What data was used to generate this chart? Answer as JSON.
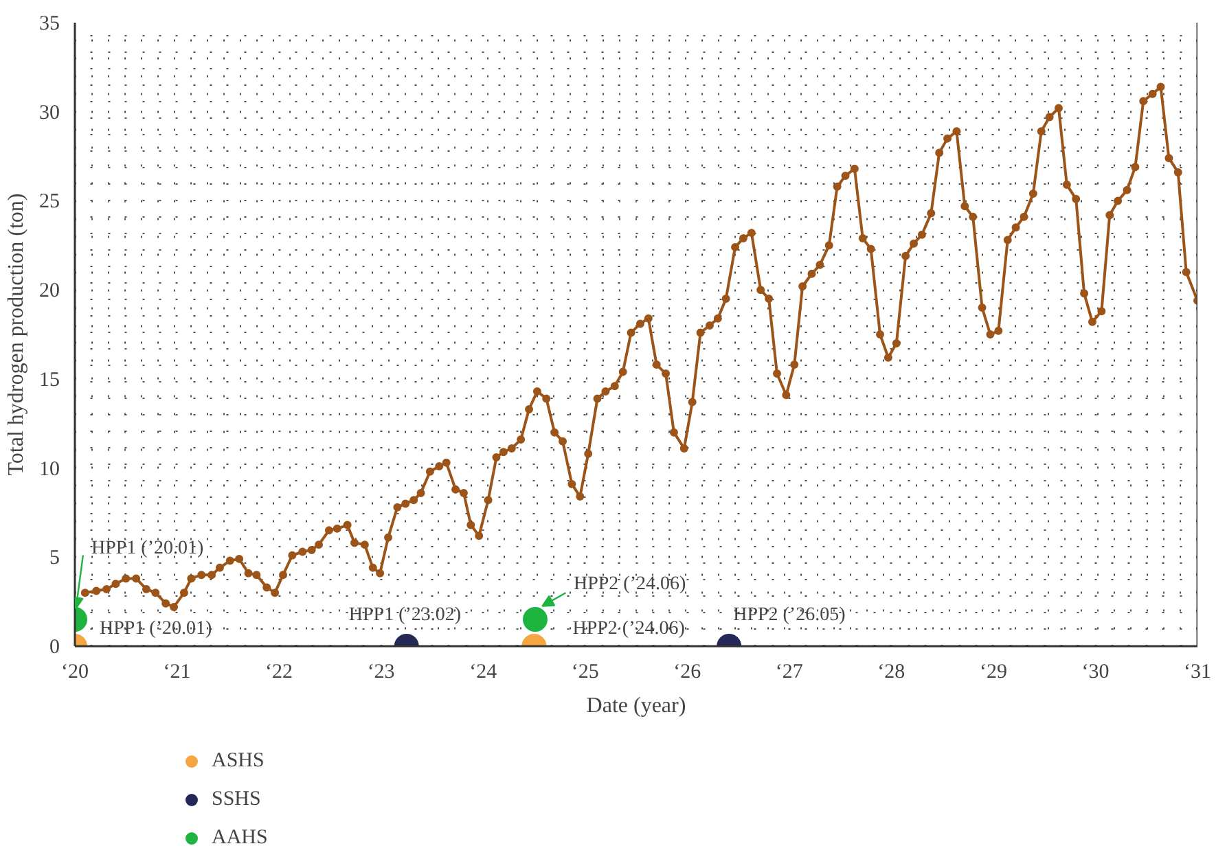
{
  "chart_data": {
    "type": "line",
    "xlabel": "Date (year)",
    "ylabel": "Total hydrogen production (ton)",
    "xlim": [
      20,
      31
    ],
    "ylim": [
      0,
      35
    ],
    "xticks": [
      {
        "value": 20,
        "label": "‘20"
      },
      {
        "value": 21,
        "label": "‘21"
      },
      {
        "value": 22,
        "label": "‘22"
      },
      {
        "value": 23,
        "label": "‘23"
      },
      {
        "value": 24,
        "label": "‘24"
      },
      {
        "value": 25,
        "label": "‘25"
      },
      {
        "value": 26,
        "label": "‘26"
      },
      {
        "value": 27,
        "label": "‘27"
      },
      {
        "value": 28,
        "label": "‘28"
      },
      {
        "value": 29,
        "label": "‘29"
      },
      {
        "value": 30,
        "label": "‘30"
      },
      {
        "value": 31,
        "label": "‘31"
      }
    ],
    "yticks": [
      0,
      5,
      10,
      15,
      20,
      25,
      30,
      35
    ],
    "grid": true,
    "legend": "bottom",
    "marker": "circle",
    "line_style": "solid",
    "series": [
      {
        "color": "#9c5418",
        "x": [
          20.1,
          20.21,
          20.31,
          20.4,
          20.5,
          20.6,
          20.7,
          20.79,
          20.89,
          20.97,
          21.07,
          21.14,
          21.24,
          21.34,
          21.42,
          21.52,
          21.61,
          21.7,
          21.78,
          21.88,
          21.96,
          22.04,
          22.13,
          22.23,
          22.32,
          22.39,
          22.49,
          22.57,
          22.67,
          22.74,
          22.84,
          22.92,
          22.99,
          23.07,
          23.16,
          23.24,
          23.32,
          23.39,
          23.48,
          23.57,
          23.64,
          23.73,
          23.81,
          23.88,
          23.96,
          24.05,
          24.13,
          24.2,
          24.28,
          24.37,
          24.45,
          24.53,
          24.62,
          24.7,
          24.78,
          24.87,
          24.95,
          25.03,
          25.12,
          25.2,
          25.29,
          25.37,
          25.45,
          25.54,
          25.62,
          25.7,
          25.79,
          25.87,
          25.97,
          26.05,
          26.13,
          26.22,
          26.3,
          26.38,
          26.47,
          26.55,
          26.63,
          26.72,
          26.8,
          26.88,
          26.97,
          27.05,
          27.13,
          27.22,
          27.3,
          27.39,
          27.47,
          27.55,
          27.64,
          27.72,
          27.8,
          27.89,
          27.97,
          28.05,
          28.14,
          28.22,
          28.3,
          28.39,
          28.47,
          28.55,
          28.64,
          28.72,
          28.8,
          28.89,
          28.97,
          29.05,
          29.14,
          29.22,
          29.3,
          29.39,
          29.47,
          29.55,
          29.64,
          29.72,
          29.81,
          29.89,
          29.97,
          30.06,
          30.14,
          30.22,
          30.31,
          30.39,
          30.47,
          30.56,
          30.64,
          30.72,
          30.81,
          30.89,
          31.0
        ],
        "values": [
          3.0,
          3.1,
          3.2,
          3.5,
          3.8,
          3.8,
          3.2,
          3.0,
          2.4,
          2.2,
          3.0,
          3.8,
          4.0,
          4.0,
          4.4,
          4.8,
          4.9,
          4.1,
          4.0,
          3.3,
          3.0,
          4.0,
          5.1,
          5.3,
          5.4,
          5.7,
          6.5,
          6.6,
          6.8,
          5.8,
          5.7,
          4.4,
          4.1,
          6.1,
          7.8,
          8.0,
          8.2,
          8.6,
          9.8,
          10.1,
          10.3,
          8.8,
          8.6,
          6.8,
          6.2,
          8.2,
          10.6,
          10.9,
          11.1,
          11.6,
          13.3,
          14.3,
          13.9,
          12.0,
          11.5,
          9.1,
          8.4,
          10.8,
          13.9,
          14.3,
          14.6,
          15.4,
          17.6,
          18.1,
          18.4,
          15.8,
          15.3,
          12.0,
          11.1,
          13.7,
          17.6,
          18.0,
          18.4,
          19.5,
          22.4,
          22.9,
          23.2,
          20.0,
          19.5,
          15.3,
          14.1,
          15.8,
          20.2,
          20.9,
          21.4,
          22.5,
          25.8,
          26.4,
          26.8,
          22.9,
          22.3,
          17.5,
          16.2,
          17.0,
          21.9,
          22.6,
          23.1,
          24.3,
          27.7,
          28.5,
          28.9,
          24.7,
          24.1,
          19.0,
          17.5,
          17.7,
          22.8,
          23.5,
          24.1,
          25.4,
          28.9,
          29.7,
          30.2,
          25.9,
          25.1,
          19.8,
          18.2,
          18.8,
          24.2,
          25.0,
          25.6,
          26.9,
          30.6,
          31.0,
          31.4,
          27.4,
          26.6,
          21.0,
          19.4
        ]
      },
      {
        "type": "scatter",
        "name": "ASHS",
        "color": "#f5a640",
        "x": [
          20.0,
          24.5
        ],
        "values": [
          0,
          0
        ]
      },
      {
        "type": "scatter",
        "name": "SSHS",
        "color": "#232856",
        "x": [
          23.25,
          26.41
        ],
        "values": [
          0,
          0
        ]
      },
      {
        "type": "scatter",
        "name": "AAHS",
        "color": "#1db440",
        "x": [
          20.0,
          24.51
        ],
        "values": [
          1.5,
          1.5
        ]
      }
    ],
    "annotations": [
      {
        "text": "HPP1 (’20.01)",
        "x": 20.0,
        "y": 1.5
      },
      {
        "text": "HPP1 (’20.01)",
        "x": 20.0,
        "y": 0
      },
      {
        "text": "HPP1 (’23.02)",
        "x": 23.25,
        "y": 0
      },
      {
        "text": "HPP2 (’24.06)",
        "x": 24.51,
        "y": 1.5
      },
      {
        "text": "HPP2 (’24.06)",
        "x": 24.5,
        "y": 0
      },
      {
        "text": "HPP2 (’26.05)",
        "x": 26.41,
        "y": 0
      }
    ]
  }
}
